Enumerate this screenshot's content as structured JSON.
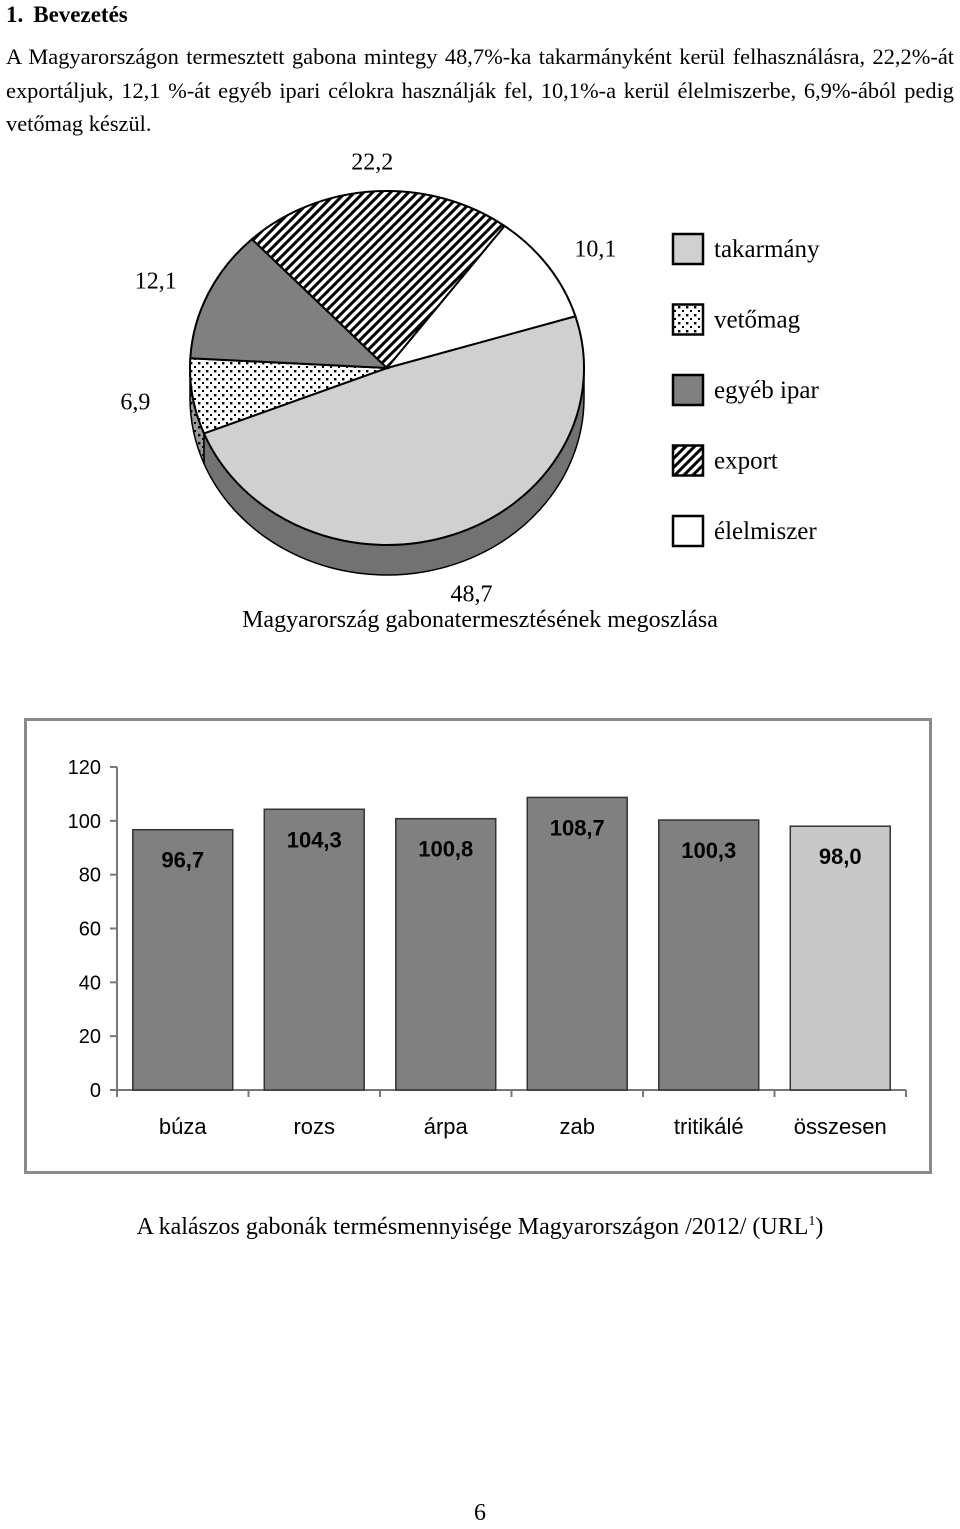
{
  "heading": {
    "number": "1.",
    "title": "Bevezetés"
  },
  "intro_paragraph": "A Magyarországon termesztett gabona mintegy 48,7%-ka takarmányként kerül felhasználásra, 22,2%-át exportáljuk, 12,1 %-át egyéb ipari célokra használják fel, 10,1%-a kerül élelmiszerbe, 6,9%-ából pedig vetőmag készül.",
  "chart_data": [
    {
      "type": "pie",
      "title": "",
      "slices": [
        {
          "label": "takarmány",
          "value": 48.7,
          "value_label": "48,7",
          "fill": "#d0d0d0",
          "pattern": "solid"
        },
        {
          "label": "vetőmag",
          "value": 6.9,
          "value_label": "6,9",
          "fill": "#ffffff",
          "pattern": "dots"
        },
        {
          "label": "egyéb ipar",
          "value": 12.1,
          "value_label": "12,1",
          "fill": "#808080",
          "pattern": "solid"
        },
        {
          "label": "export",
          "value": 22.2,
          "value_label": "22,2",
          "fill": "#ffffff",
          "pattern": "diagonal-hatch"
        },
        {
          "label": "élelmiszer",
          "value": 10.1,
          "value_label": "10,1",
          "fill": "#ffffff",
          "pattern": "solid"
        }
      ],
      "legend_position": "right",
      "style": "3d"
    },
    {
      "type": "bar",
      "title": "",
      "categories": [
        "búza",
        "rozs",
        "árpa",
        "zab",
        "tritikálé",
        "összesen"
      ],
      "values": [
        96.7,
        104.3,
        100.8,
        108.7,
        100.3,
        98.0
      ],
      "value_labels": [
        "96,7",
        "104,3",
        "100,8",
        "108,7",
        "100,3",
        "98,0"
      ],
      "bar_colors": [
        "#808080",
        "#808080",
        "#808080",
        "#808080",
        "#808080",
        "#c8c8c8"
      ],
      "ylim": [
        0,
        120
      ],
      "yticks": [
        0,
        20,
        40,
        60,
        80,
        100,
        120
      ],
      "grid": false,
      "xlabel": "",
      "ylabel": ""
    }
  ],
  "captions": {
    "pie": "Magyarország gabonatermesztésének megoszlása",
    "bar": "A kalászos gabonák termésmennyisége Magyarországon /2012/ (URL",
    "bar_footnote": "1",
    "bar_close": ")"
  },
  "page_number": "6"
}
